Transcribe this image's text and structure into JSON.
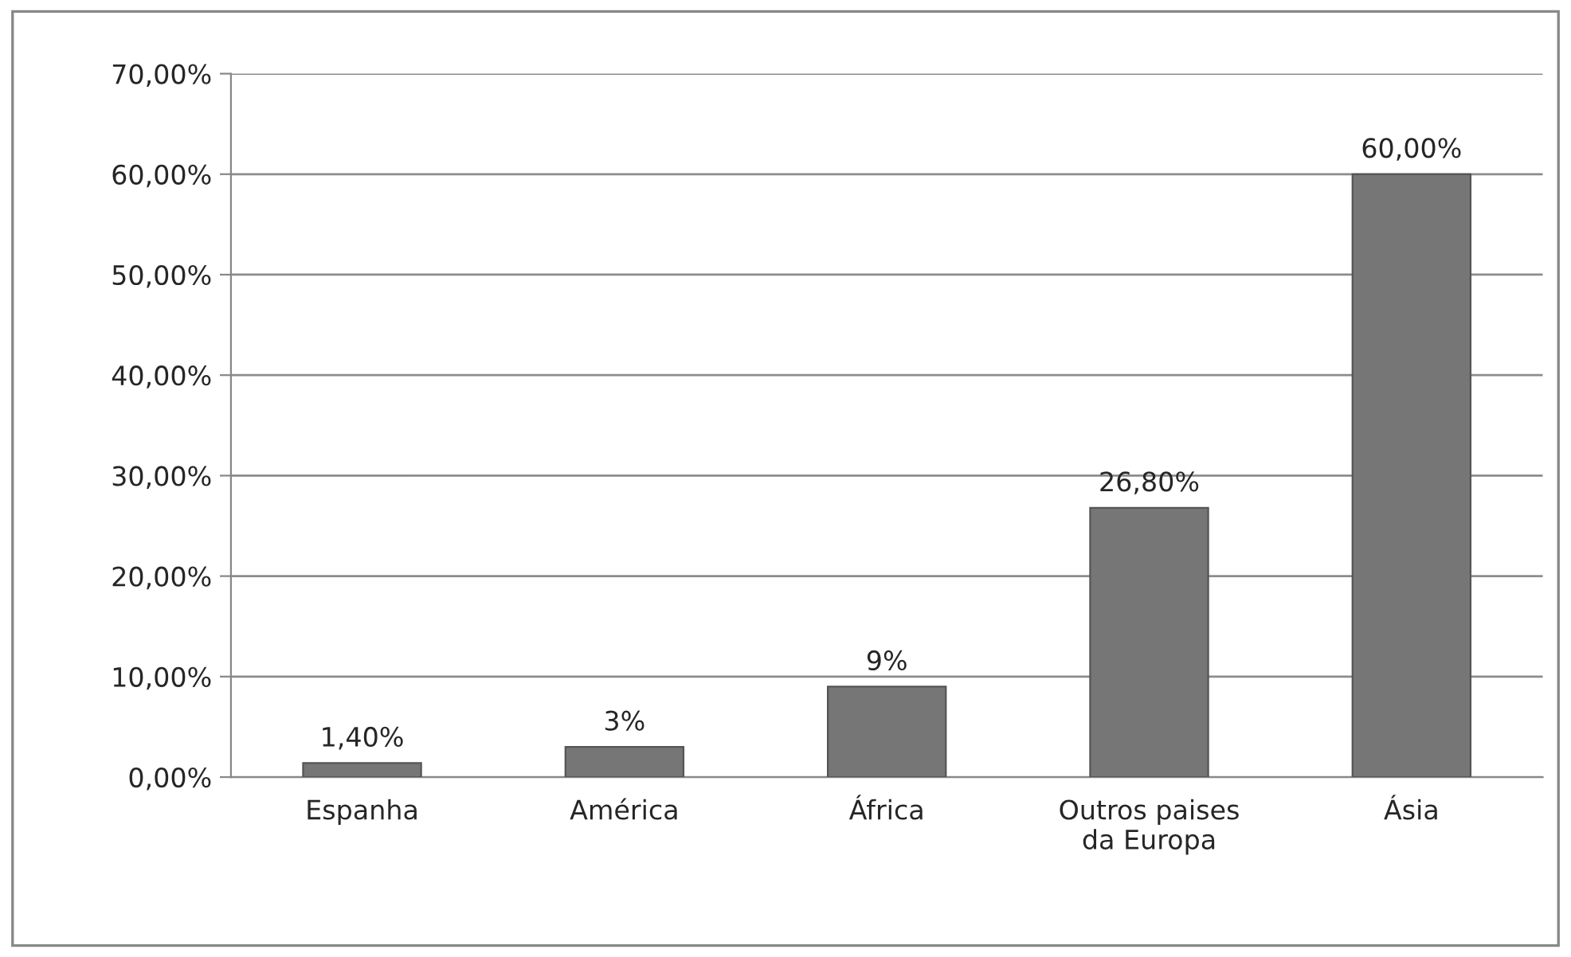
{
  "chart_data": {
    "type": "bar",
    "categories": [
      "Espanha",
      "América",
      "África",
      "Outros paises\nda Europa",
      "Ásia"
    ],
    "values": [
      1.4,
      3,
      9,
      26.8,
      60
    ],
    "value_labels": [
      "1,40%",
      "3%",
      "9%",
      "26,80%",
      "60,00%"
    ],
    "color": "#767676",
    "ylim": [
      0,
      70
    ],
    "yticks": [
      {
        "value": 0,
        "label": "0,00%"
      },
      {
        "value": 10,
        "label": "10,00%"
      },
      {
        "value": 20,
        "label": "20,00%"
      },
      {
        "value": 30,
        "label": "30,00%"
      },
      {
        "value": 40,
        "label": "40,00%"
      },
      {
        "value": 50,
        "label": "50,00%"
      },
      {
        "value": 60,
        "label": "60,00%"
      },
      {
        "value": 70,
        "label": "70,00%"
      }
    ],
    "grid": "y"
  }
}
